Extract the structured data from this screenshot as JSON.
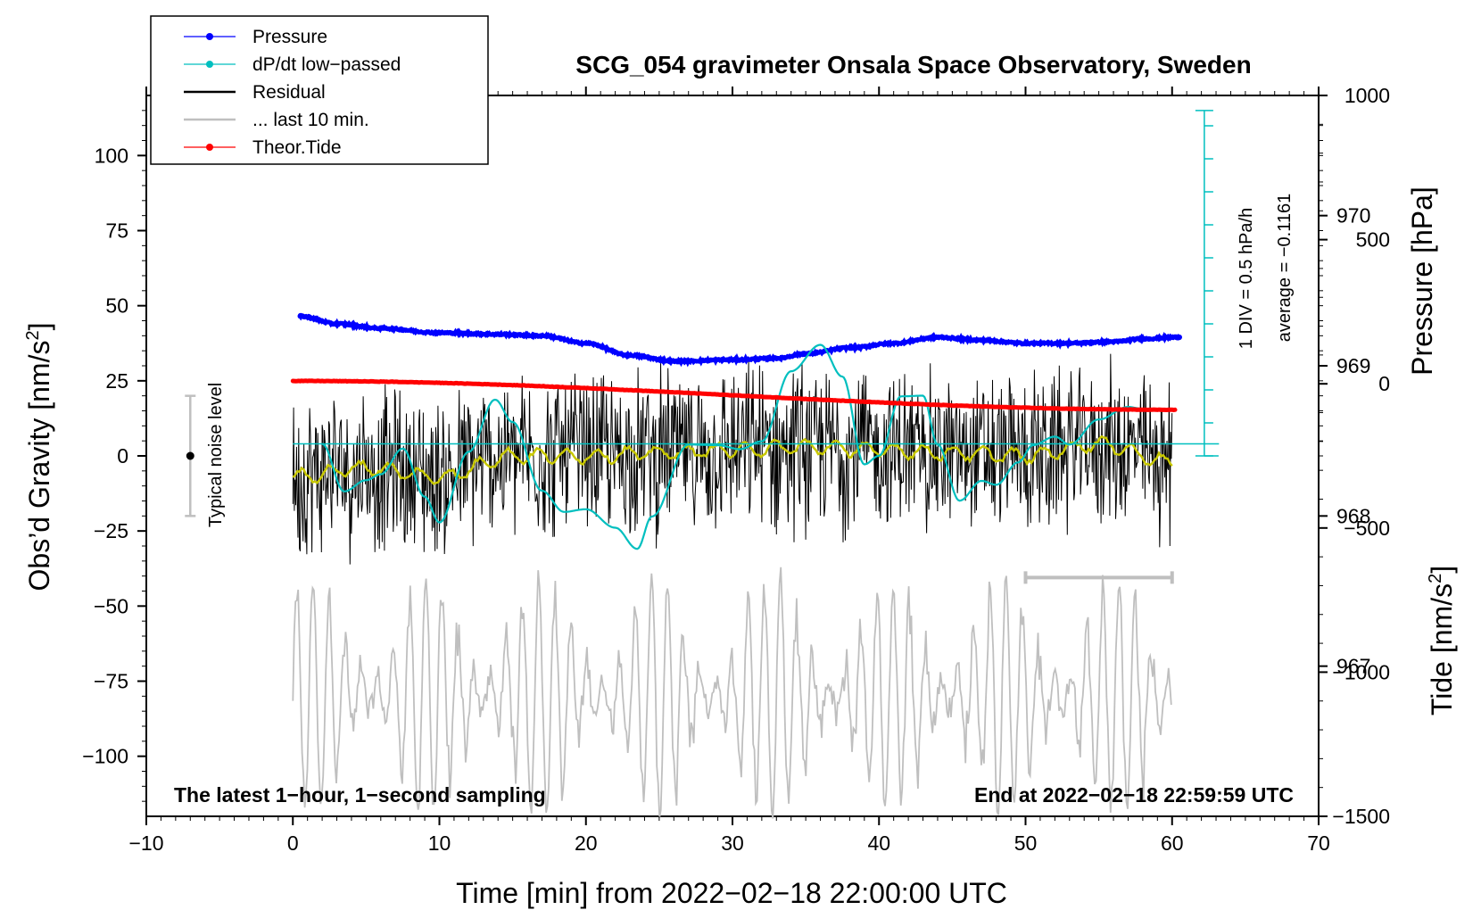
{
  "chart_data": {
    "type": "line",
    "title": "SCG_054 gravimeter Onsala Space Observatory, Sweden",
    "xlabel": "Time [min] from 2022−02−18 22:00:00 UTC",
    "ylabel_left": "Obs’d Gravity [nm/s",
    "ylabel_left_sup": "2",
    "ylabel_left_close": "]",
    "ylabel_right_top": "Pressure [hPa]",
    "ylabel_right_bottom": "Tide [nm/s",
    "ylabel_right_bottom_sup": "2",
    "ylabel_right_bottom_close": "]",
    "xlim": [
      -10,
      70
    ],
    "ylim_gravity": [
      -120,
      120
    ],
    "ylim_pressure": [
      966.0,
      970.8
    ],
    "ylim_tide": [
      -1500,
      1000
    ],
    "x_ticks": [
      "−10",
      "0",
      "10",
      "20",
      "30",
      "40",
      "50",
      "60",
      "70"
    ],
    "gravity_ticks": [
      "−100",
      "−75",
      "−50",
      "−25",
      "0",
      "25",
      "50",
      "75",
      "100"
    ],
    "pressure_ticks": [
      "967",
      "968",
      "969",
      "970"
    ],
    "tide_ticks": [
      "−1500",
      "−1000",
      "−500",
      "0",
      "500",
      "1000"
    ],
    "footer_left": "The latest 1−hour, 1−second sampling",
    "footer_right": "End at 2022−02−18 22:59:59 UTC",
    "legend": [
      {
        "label": "Pressure",
        "color": "#0000ff",
        "marker": true
      },
      {
        "label": "dP/dt low−passed",
        "color": "#00bfbf",
        "marker": true
      },
      {
        "label": "Residual",
        "color": "#000000",
        "marker": false
      },
      {
        "label": "... last 10 min.",
        "color": "#bfbfbf",
        "marker": false
      },
      {
        "label": "Theor.Tide",
        "color": "#ff0000",
        "marker": true
      }
    ],
    "noise_label": "Typical noise level",
    "noise_level": [
      -20,
      20
    ],
    "noise_x": -7,
    "dpdt_scale_label": "1 DIV = 0.5 hPa/h",
    "dpdt_average_label": "average = −0.1161",
    "last10_range": [
      50,
      60
    ],
    "series": [
      {
        "name": "Pressure",
        "unit": "hPa",
        "color": "#0000ff",
        "x": [
          0.5,
          3,
          6,
          10,
          14,
          17,
          20,
          23,
          26,
          30,
          33,
          35,
          38,
          41,
          44,
          47,
          50,
          53,
          56,
          58,
          60.5
        ],
        "values": [
          969.33,
          969.28,
          969.25,
          969.22,
          969.21,
          969.2,
          969.15,
          969.07,
          969.03,
          969.04,
          969.05,
          969.08,
          969.12,
          969.15,
          969.19,
          969.17,
          969.15,
          969.15,
          969.16,
          969.18,
          969.19
        ]
      },
      {
        "name": "dP/dt low−passed",
        "unit": "hPa/h",
        "color": "#00bfbf",
        "x": [
          2,
          3.5,
          5,
          6,
          7.5,
          9,
          10,
          12,
          13.8,
          15,
          17,
          18.5,
          20,
          22,
          23.5,
          24.5,
          27,
          29,
          30.5,
          32,
          34,
          36,
          37.5,
          39,
          40,
          41.5,
          43,
          44,
          45.5,
          47,
          48,
          49.5,
          50.5,
          52,
          53,
          55,
          57,
          58
        ],
        "values": [
          0.0,
          -0.72,
          -0.55,
          -0.46,
          -0.07,
          -0.8,
          -1.19,
          -0.12,
          0.67,
          0.33,
          -0.71,
          -1.03,
          -0.99,
          -1.27,
          -1.59,
          -1.1,
          -0.01,
          -0.02,
          -0.08,
          0.04,
          1.1,
          1.5,
          1.02,
          -0.31,
          -0.18,
          0.72,
          0.73,
          -0.01,
          -0.86,
          -0.56,
          -0.62,
          -0.28,
          -0.02,
          0.11,
          -0.01,
          0.37,
          0.56,
          0.53
        ],
        "zero_line": 968.48,
        "axis_range": [
          966.0,
          970.8
        ]
      },
      {
        "name": "Residual",
        "unit": "nm/s2",
        "color": "#000000",
        "x": [
          0,
          5,
          10,
          15,
          20,
          25,
          30,
          35,
          40,
          45,
          50,
          55,
          60
        ],
        "values": [
          -7,
          -4,
          -7,
          0,
          0,
          1,
          2,
          3,
          2,
          1,
          0,
          4,
          -2
        ],
        "amplitude": 25
      },
      {
        "name": "... last 10 min.",
        "unit": "nm/s2",
        "color": "#bfbfbf",
        "x": [
          0,
          60
        ],
        "values": [
          -80,
          -80
        ],
        "amplitude": 40
      },
      {
        "name": "Theor.Tide",
        "unit": "nm/s2",
        "color": "#ff0000",
        "x": [
          0,
          60.3
        ],
        "values": [
          10,
          -90
        ]
      }
    ]
  }
}
